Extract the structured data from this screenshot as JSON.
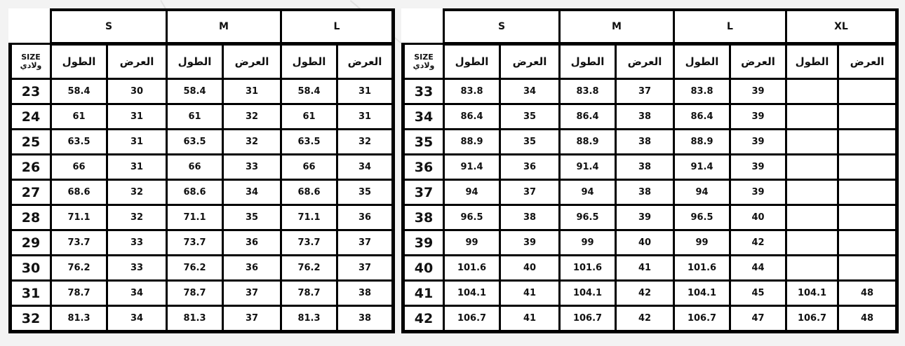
{
  "corner_label": [
    "SIZE",
    "ولادي"
  ],
  "column_labels": {
    "length": "الطول",
    "width": "العرض"
  },
  "tables": [
    {
      "sizes": [
        "S",
        "M",
        "L"
      ],
      "rows": [
        {
          "size": "23",
          "values": [
            "58.4",
            "30",
            "58.4",
            "31",
            "58.4",
            "31"
          ]
        },
        {
          "size": "24",
          "values": [
            "61",
            "31",
            "61",
            "32",
            "61",
            "31"
          ]
        },
        {
          "size": "25",
          "values": [
            "63.5",
            "31",
            "63.5",
            "32",
            "63.5",
            "32"
          ]
        },
        {
          "size": "26",
          "values": [
            "66",
            "31",
            "66",
            "33",
            "66",
            "34"
          ]
        },
        {
          "size": "27",
          "values": [
            "68.6",
            "32",
            "68.6",
            "34",
            "68.6",
            "35"
          ]
        },
        {
          "size": "28",
          "values": [
            "71.1",
            "32",
            "71.1",
            "35",
            "71.1",
            "36"
          ]
        },
        {
          "size": "29",
          "values": [
            "73.7",
            "33",
            "73.7",
            "36",
            "73.7",
            "37"
          ]
        },
        {
          "size": "30",
          "values": [
            "76.2",
            "33",
            "76.2",
            "36",
            "76.2",
            "37"
          ]
        },
        {
          "size": "31",
          "values": [
            "78.7",
            "34",
            "78.7",
            "37",
            "78.7",
            "38"
          ]
        },
        {
          "size": "32",
          "values": [
            "81.3",
            "34",
            "81.3",
            "37",
            "81.3",
            "38"
          ]
        }
      ]
    },
    {
      "sizes": [
        "S",
        "M",
        "L",
        "XL"
      ],
      "rows": [
        {
          "size": "33",
          "values": [
            "83.8",
            "34",
            "83.8",
            "37",
            "83.8",
            "39",
            "",
            ""
          ]
        },
        {
          "size": "34",
          "values": [
            "86.4",
            "35",
            "86.4",
            "38",
            "86.4",
            "39",
            "",
            ""
          ]
        },
        {
          "size": "35",
          "values": [
            "88.9",
            "35",
            "88.9",
            "38",
            "88.9",
            "39",
            "",
            ""
          ]
        },
        {
          "size": "36",
          "values": [
            "91.4",
            "36",
            "91.4",
            "38",
            "91.4",
            "39",
            "",
            ""
          ]
        },
        {
          "size": "37",
          "values": [
            "94",
            "37",
            "94",
            "38",
            "94",
            "39",
            "",
            ""
          ]
        },
        {
          "size": "38",
          "values": [
            "96.5",
            "38",
            "96.5",
            "39",
            "96.5",
            "40",
            "",
            ""
          ]
        },
        {
          "size": "39",
          "values": [
            "99",
            "39",
            "99",
            "40",
            "99",
            "42",
            "",
            ""
          ]
        },
        {
          "size": "40",
          "values": [
            "101.6",
            "40",
            "101.6",
            "41",
            "101.6",
            "44",
            "",
            ""
          ]
        },
        {
          "size": "41",
          "values": [
            "104.1",
            "41",
            "104.1",
            "42",
            "104.1",
            "45",
            "104.1",
            "48"
          ]
        },
        {
          "size": "42",
          "values": [
            "106.7",
            "41",
            "106.7",
            "42",
            "106.7",
            "47",
            "106.7",
            "48"
          ]
        }
      ]
    }
  ]
}
